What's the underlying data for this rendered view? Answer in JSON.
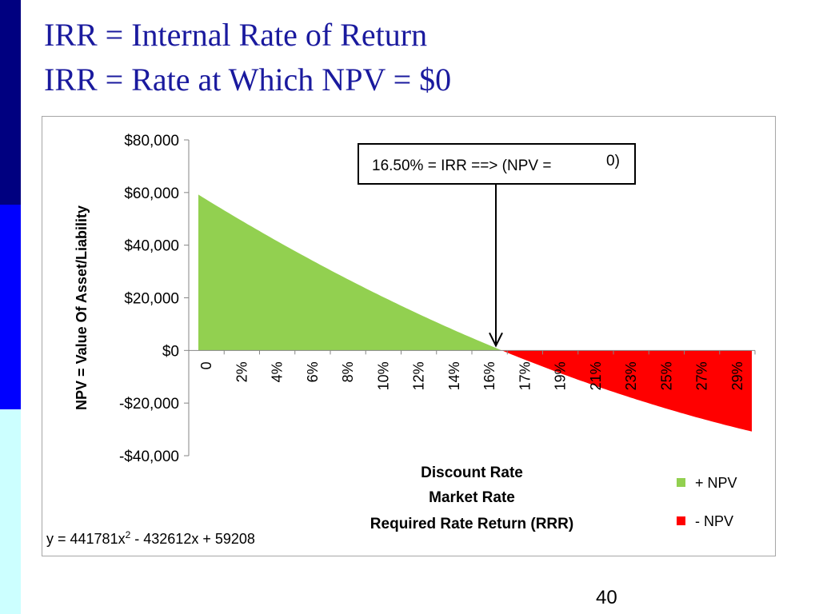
{
  "slide": {
    "title_line1": "IRR = Internal Rate of Return",
    "title_line2": "IRR = Rate at Which NPV = $0",
    "page_number": "40"
  },
  "colors": {
    "positive": "#92d050",
    "negative": "#ff0000",
    "title": "#1a1a9e"
  },
  "chart_data": {
    "type": "area",
    "title": "",
    "ylabel": "NPV = Value Of Asset/Liability",
    "xlabel_lines": [
      "Discount Rate",
      "Market Rate",
      "Required Rate Return (RRR)"
    ],
    "ylim": [
      -40000,
      80000
    ],
    "y_ticks": [
      80000,
      60000,
      40000,
      20000,
      0,
      -20000,
      -40000
    ],
    "y_tick_labels": [
      "$80,000",
      "$60,000",
      "$40,000",
      "$20,000",
      "$0",
      "-$20,000",
      "-$40,000"
    ],
    "x_tick_labels": [
      "0",
      "2%",
      "4%",
      "6%",
      "8%",
      "10%",
      "12%",
      "14%",
      "16%",
      "17%",
      "19%",
      "21%",
      "23%",
      "25%",
      "27%",
      "29%"
    ],
    "x_tick_values": [
      0,
      0.02,
      0.04,
      0.06,
      0.08,
      0.1,
      0.12,
      0.14,
      0.16,
      0.17,
      0.19,
      0.21,
      0.23,
      0.25,
      0.27,
      0.29
    ],
    "x_range": [
      0,
      0.3
    ],
    "irr": 0.165,
    "fit": {
      "a": 441781,
      "b": -432612,
      "c": 59208
    },
    "series": [
      {
        "name": "+ NPV",
        "color": "#92d050",
        "from": 0,
        "to": 0.165
      },
      {
        "name": "- NPV",
        "color": "#ff0000",
        "from": 0.165,
        "to": 0.3
      }
    ],
    "annotation": {
      "prefix": "16.50% = IRR ==> (NPV =",
      "value": "0)"
    },
    "equation": {
      "lhs": "y = 441781x",
      "exp": "2",
      "rhs": " - 432612x + 59208"
    },
    "legend_position": "bottom-right"
  }
}
